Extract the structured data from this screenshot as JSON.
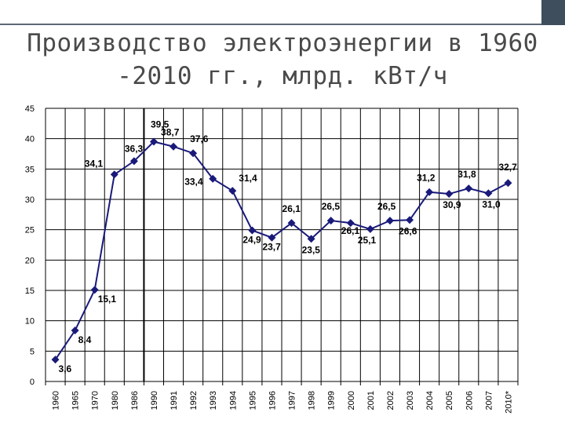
{
  "slide": {
    "title_line1": "Производство электроэнергии в 1960",
    "title_line2": "-2010 гг., млрд. кВт/ч"
  },
  "colors": {
    "series": "#1a1a7a",
    "grid": "#000000",
    "accent_bar": "#3f4e5c",
    "title": "#4a4a4a"
  },
  "chart_data": {
    "type": "line",
    "title": "",
    "xlabel": "",
    "ylabel": "",
    "ylim": [
      0,
      45
    ],
    "y_ticks": [
      "0",
      "5",
      "10",
      "15",
      "20",
      "25",
      "30",
      "35",
      "40",
      "45"
    ],
    "grid": true,
    "legend": "none",
    "marker": "diamond",
    "categories": [
      "1960",
      "1965",
      "1970",
      "1980",
      "1986",
      "1990",
      "1991",
      "1992",
      "1993",
      "1994",
      "1995",
      "1996",
      "1997",
      "1998",
      "1999",
      "2000",
      "2001",
      "2002",
      "2003",
      "2004",
      "2005",
      "2006",
      "2007",
      "2010*"
    ],
    "values": [
      3.6,
      8.4,
      15.1,
      34.1,
      36.3,
      39.5,
      38.7,
      37.6,
      33.4,
      31.4,
      24.9,
      23.7,
      26.1,
      23.5,
      26.5,
      26.1,
      25.1,
      26.5,
      26.6,
      31.2,
      30.9,
      31.8,
      31.0,
      32.7
    ],
    "data_labels": [
      "3,6",
      "8,4",
      "15,1",
      "34,1",
      "36,3",
      "39,5",
      "38,7",
      "37,6",
      "33,4",
      "31,4",
      "24,9",
      "23,7",
      "26,1",
      "23,5",
      "26,5",
      "26,1",
      "25,1",
      "26,5",
      "26,6",
      "31,2",
      "30,9",
      "31,8",
      "31,0",
      "32,7"
    ],
    "annotations": [
      "vertical line between 1986 and 1990"
    ]
  }
}
